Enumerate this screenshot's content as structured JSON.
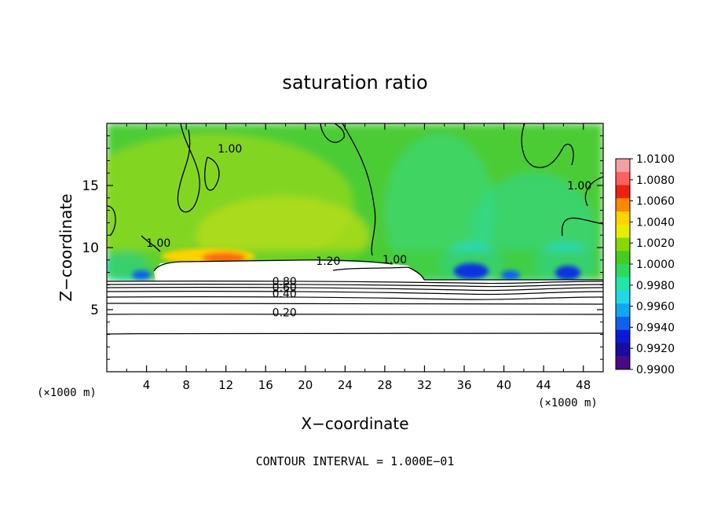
{
  "chart_data": {
    "type": "heatmap",
    "title": "saturation ratio",
    "xlabel": "X−coordinate",
    "ylabel": "Z−coordinate",
    "x_unit_left": "(×1000 m)",
    "x_unit_right": "(×1000 m)",
    "xlim": [
      0,
      50
    ],
    "ylim": [
      0,
      20
    ],
    "x_ticks": [
      4,
      8,
      12,
      16,
      20,
      24,
      28,
      32,
      36,
      40,
      44,
      48
    ],
    "y_ticks": [
      5,
      10,
      15
    ],
    "colorbar": {
      "min": 0.99,
      "max": 1.01,
      "labels": [
        "1.0100",
        "1.0080",
        "1.0060",
        "1.0040",
        "1.0020",
        "1.0000",
        "0.9980",
        "0.9960",
        "0.9940",
        "0.9920",
        "0.9900"
      ],
      "colors": [
        "#f4a0a0",
        "#ff6060",
        "#ee2010",
        "#ff8800",
        "#ffd200",
        "#e6ee00",
        "#88d800",
        "#44cc22",
        "#2ed860",
        "#22e6a8",
        "#22d8e6",
        "#10a6f0",
        "#1060f0",
        "#0c18d8",
        "#1a0aa0",
        "#4a0a88"
      ]
    },
    "contour_labels": [
      {
        "text": "1.20",
        "x": 22.3,
        "z": 8.75
      },
      {
        "text": "1.00",
        "x": 29.0,
        "z": 8.85
      },
      {
        "text": "1.00",
        "x": 5.2,
        "z": 10.2
      },
      {
        "text": "1.00",
        "x": 12.4,
        "z": 17.8
      },
      {
        "text": "1.00",
        "x": 47.6,
        "z": 14.8
      },
      {
        "text": "0.80",
        "x": 17.9,
        "z": 7.1
      },
      {
        "text": "0.60",
        "x": 17.9,
        "z": 6.6
      },
      {
        "text": "0.40",
        "x": 17.9,
        "z": 6.1
      },
      {
        "text": "0.20",
        "x": 17.9,
        "z": 4.6
      }
    ],
    "grid": false
  },
  "footer": {
    "contour_interval": "CONTOUR INTERVAL = 1.000E−01"
  }
}
